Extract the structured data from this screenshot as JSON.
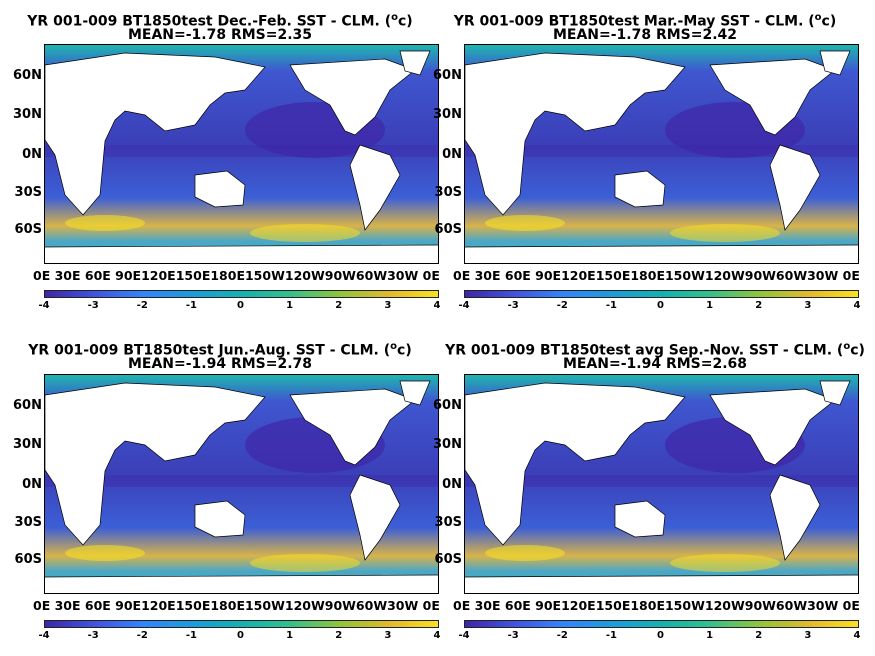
{
  "panels": [
    {
      "title_line1": "YR 001-009 BT1850test  Dec.-Feb. SST - CLM. (",
      "title_sup": "o",
      "title_tail": "c)",
      "title_line2": "MEAN=-1.78   RMS=2.35"
    },
    {
      "title_line1": "YR 001-009 BT1850test Mar.-May SST - CLM. (",
      "title_sup": "o",
      "title_tail": "c)",
      "title_line2": "MEAN=-1.78   RMS=2.42"
    },
    {
      "title_line1": "YR 001-009 BT1850test Jun.-Aug. SST - CLM. (",
      "title_sup": "o",
      "title_tail": "c)",
      "title_line2": "MEAN=-1.94   RMS=2.78"
    },
    {
      "title_line1": "YR 001-009 BT1850test avg Sep.-Nov. SST - CLM. (",
      "title_sup": "o",
      "title_tail": "c)",
      "title_line2": "MEAN=-1.94   RMS=2.68"
    }
  ],
  "lat_labels": [
    "60N",
    "30N",
    "0N",
    "30S",
    "60S"
  ],
  "lon_labels_text": "0E  30E 60E 90E120E150E180E150W120W90W60W30W  0E",
  "colorbar_ticks": [
    "-4",
    "-3",
    "-2",
    "-1",
    "0",
    "1",
    "2",
    "3",
    "4"
  ],
  "colors": {
    "land": "#ffffff",
    "ocean_base": "#3f4fc8",
    "anomaly_cold": "#3e26a8",
    "anomaly_warm": "#f9e121",
    "arctic": "#1fb6b0"
  }
}
